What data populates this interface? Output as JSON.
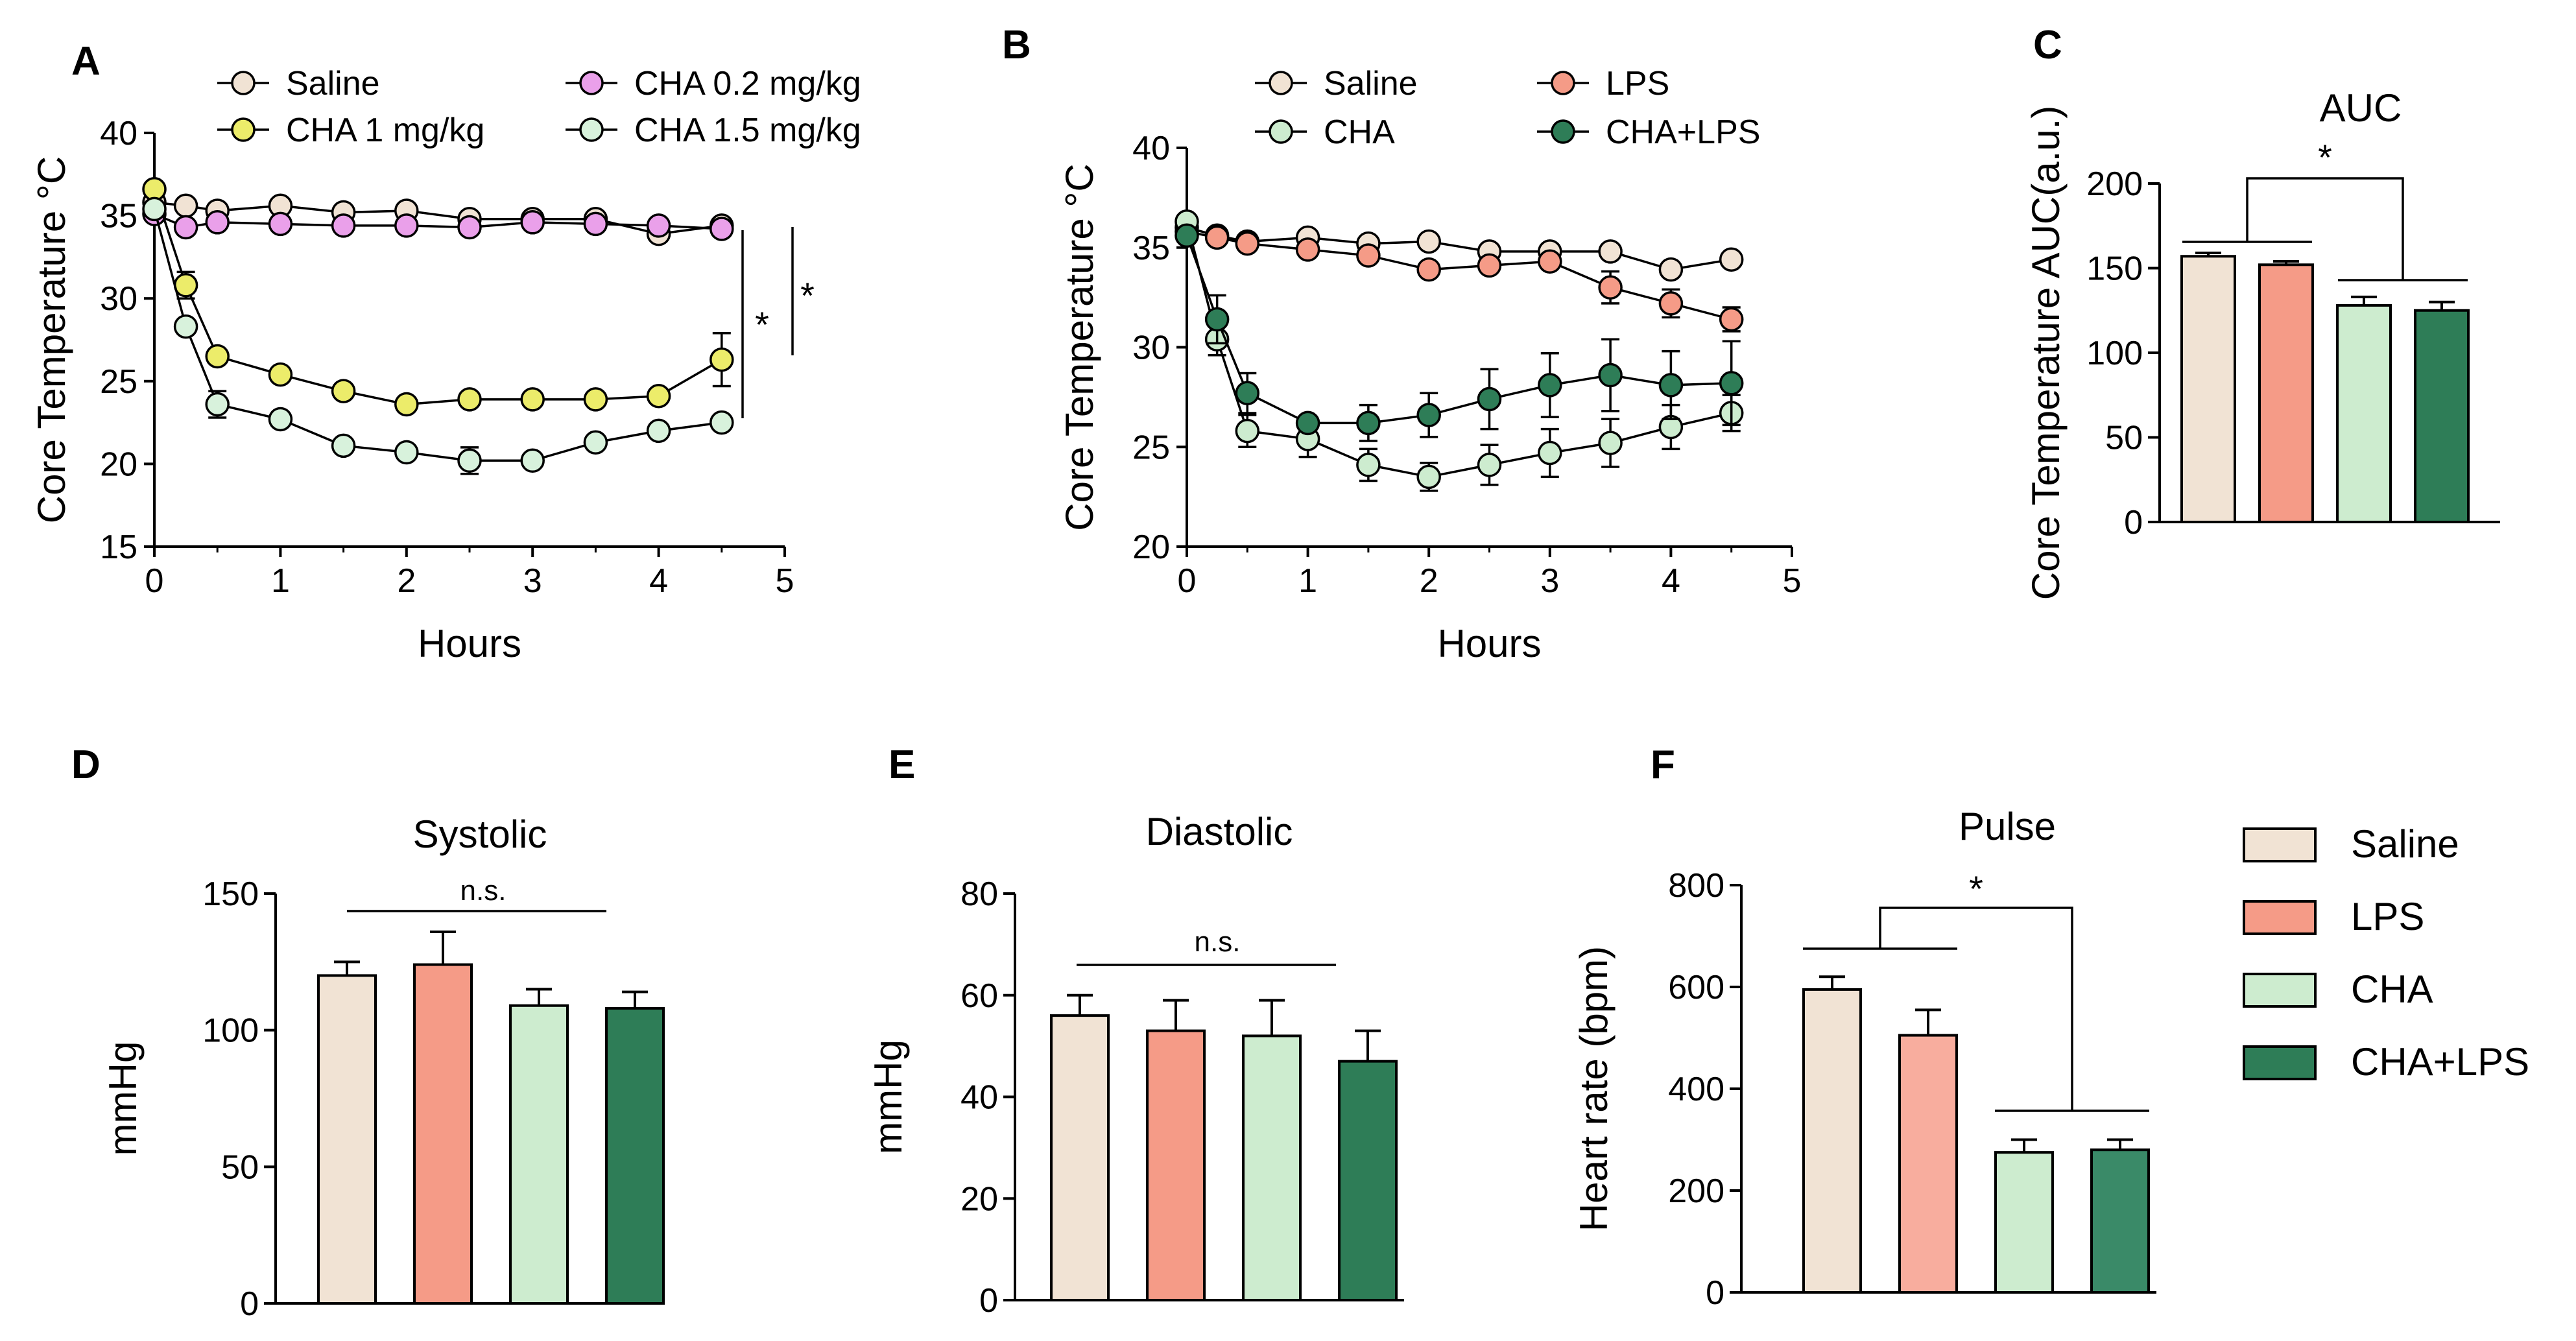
{
  "colors": {
    "Saline": "#f1e3d4",
    "LPS": "#f59b87",
    "CHA": "#cdeccf",
    "CHA+LPS": "#2e7d57",
    "CHA 0.2 mg/kg": "#eaa0ea",
    "CHA 1 mg/kg": "#ecec6a",
    "CHA 1.5 mg/kg": "#d8f2dc",
    "pulse_CHA+LPS": "#3a8a68",
    "pulse_LPS": "#f8ad9e"
  },
  "chart_data": [
    {
      "id": "A",
      "panel_label": "A",
      "type": "line",
      "title": "",
      "xlabel": "Hours",
      "ylabel": "Core Temperature °C",
      "xlim": [
        0,
        5
      ],
      "ylim": [
        15,
        40
      ],
      "xticks": [
        0,
        1,
        2,
        3,
        4,
        5
      ],
      "yticks": [
        15,
        20,
        25,
        30,
        35,
        40
      ],
      "legend": [
        "Saline",
        "CHA 1 mg/kg",
        "CHA 0.2 mg/kg",
        "CHA 1.5 mg/kg"
      ],
      "series": [
        {
          "name": "Saline",
          "x": [
            0,
            0.25,
            0.5,
            1,
            1.5,
            2,
            2.5,
            3,
            3.5,
            4,
            4.5
          ],
          "y": [
            35.8,
            35.6,
            35.3,
            35.6,
            35.2,
            35.3,
            34.8,
            34.8,
            34.8,
            33.9,
            34.4
          ],
          "err": [
            0.3,
            0.3,
            0.3,
            0.3,
            0.3,
            0.3,
            0.3,
            0.3,
            0.3,
            0.4,
            0.3
          ]
        },
        {
          "name": "CHA 0.2 mg/kg",
          "x": [
            0,
            0.25,
            0.5,
            1,
            1.5,
            2,
            2.5,
            3,
            3.5,
            4,
            4.5
          ],
          "y": [
            35.1,
            34.3,
            34.6,
            34.5,
            34.4,
            34.4,
            34.3,
            34.6,
            34.5,
            34.4,
            34.2
          ],
          "err": [
            0.3,
            0.3,
            0.3,
            0.3,
            0.3,
            0.3,
            0.3,
            0.3,
            0.3,
            0.3,
            0.3
          ]
        },
        {
          "name": "CHA 1 mg/kg",
          "x": [
            0,
            0.25,
            0.5,
            1,
            1.5,
            2,
            2.5,
            3,
            3.5,
            4,
            4.5
          ],
          "y": [
            36.6,
            30.8,
            26.5,
            25.4,
            24.4,
            23.6,
            23.9,
            23.9,
            23.9,
            24.1,
            26.3
          ],
          "err": [
            0.3,
            0.8,
            0.5,
            0.4,
            0.4,
            0.4,
            0.4,
            0.4,
            0.5,
            0.7,
            1.6
          ]
        },
        {
          "name": "CHA 1.5 mg/kg",
          "x": [
            0,
            0.25,
            0.5,
            1,
            1.5,
            2,
            2.5,
            3,
            3.5,
            4,
            4.5
          ],
          "y": [
            35.4,
            28.3,
            23.6,
            22.7,
            21.1,
            20.7,
            20.2,
            20.2,
            21.3,
            22.0,
            22.5
          ],
          "err": [
            0.3,
            0.5,
            0.8,
            0.4,
            0.3,
            0.3,
            0.8,
            0.7,
            0.7,
            0.4,
            0.4
          ]
        }
      ],
      "annotations": [
        "*",
        "*"
      ]
    },
    {
      "id": "B",
      "panel_label": "B",
      "type": "line",
      "title": "",
      "xlabel": "Hours",
      "ylabel": "Core Temperature °C",
      "xlim": [
        0,
        5
      ],
      "ylim": [
        20,
        40
      ],
      "xticks": [
        0,
        1,
        2,
        3,
        4,
        5
      ],
      "yticks": [
        20,
        25,
        30,
        35,
        40
      ],
      "legend": [
        "Saline",
        "CHA",
        "LPS",
        "CHA+LPS"
      ],
      "series": [
        {
          "name": "Saline",
          "x": [
            0,
            0.25,
            0.5,
            1,
            1.5,
            2,
            2.5,
            3,
            3.5,
            4,
            4.5
          ],
          "y": [
            36.0,
            35.6,
            35.3,
            35.5,
            35.2,
            35.3,
            34.8,
            34.8,
            34.8,
            33.9,
            34.4
          ],
          "err": [
            0.3,
            0.3,
            0.3,
            0.3,
            0.3,
            0.3,
            0.3,
            0.3,
            0.3,
            0.5,
            0.5
          ]
        },
        {
          "name": "LPS",
          "x": [
            0,
            0.25,
            0.5,
            1,
            1.5,
            2,
            2.5,
            3,
            3.5,
            4,
            4.5
          ],
          "y": [
            35.8,
            35.5,
            35.2,
            34.9,
            34.6,
            33.9,
            34.1,
            34.3,
            33.0,
            32.2,
            31.4
          ],
          "err": [
            0.3,
            0.3,
            0.3,
            0.3,
            0.3,
            0.4,
            0.4,
            0.4,
            0.8,
            0.7,
            0.6
          ]
        },
        {
          "name": "CHA",
          "x": [
            0,
            0.25,
            0.5,
            1,
            1.5,
            2,
            2.5,
            3,
            3.5,
            4,
            4.5
          ],
          "y": [
            36.3,
            30.4,
            25.8,
            25.4,
            24.1,
            23.5,
            24.1,
            24.7,
            25.2,
            26.0,
            26.7
          ],
          "err": [
            0.3,
            0.8,
            0.8,
            0.9,
            0.8,
            0.7,
            1.0,
            1.2,
            1.2,
            1.1,
            0.9
          ]
        },
        {
          "name": "CHA+LPS",
          "x": [
            0,
            0.25,
            0.5,
            1,
            1.5,
            2,
            2.5,
            3,
            3.5,
            4,
            4.5
          ],
          "y": [
            35.6,
            31.4,
            27.7,
            26.2,
            26.2,
            26.6,
            27.4,
            28.1,
            28.6,
            28.1,
            28.2
          ],
          "err": [
            0.3,
            1.2,
            1.0,
            0.5,
            0.9,
            1.1,
            1.5,
            1.6,
            1.8,
            1.7,
            2.1
          ]
        }
      ]
    },
    {
      "id": "C",
      "panel_label": "C",
      "type": "bar",
      "title": "AUC",
      "xlabel": "",
      "ylabel": "Core Temperature AUC(a.u.)",
      "ylim": [
        0,
        200
      ],
      "yticks": [
        0,
        50,
        100,
        150,
        200
      ],
      "categories": [
        "Saline",
        "LPS",
        "CHA",
        "CHA+LPS"
      ],
      "values": [
        157,
        152,
        128,
        125
      ],
      "errors": [
        2,
        2,
        5,
        5
      ],
      "annotation": "*"
    },
    {
      "id": "D",
      "panel_label": "D",
      "type": "bar",
      "title": "Systolic",
      "xlabel": "",
      "ylabel": "mmHg",
      "ylim": [
        0,
        150
      ],
      "yticks": [
        0,
        50,
        100,
        150
      ],
      "categories": [
        "Saline",
        "LPS",
        "CHA",
        "CHA+LPS"
      ],
      "values": [
        120,
        124,
        109,
        108
      ],
      "errors": [
        5,
        12,
        6,
        6
      ],
      "annotation": "n.s."
    },
    {
      "id": "E",
      "panel_label": "E",
      "type": "bar",
      "title": "Diastolic",
      "xlabel": "",
      "ylabel": "mmHg",
      "ylim": [
        0,
        80
      ],
      "yticks": [
        0,
        20,
        40,
        60,
        80
      ],
      "categories": [
        "Saline",
        "LPS",
        "CHA",
        "CHA+LPS"
      ],
      "values": [
        56,
        53,
        52,
        47
      ],
      "errors": [
        4,
        6,
        7,
        6
      ],
      "annotation": "n.s."
    },
    {
      "id": "F",
      "panel_label": "F",
      "type": "bar",
      "title": "Pulse",
      "xlabel": "",
      "ylabel": "Heart rate (bpm)",
      "ylim": [
        0,
        800
      ],
      "yticks": [
        0,
        200,
        400,
        600,
        800
      ],
      "categories": [
        "Saline",
        "LPS",
        "CHA",
        "CHA+LPS"
      ],
      "values": [
        595,
        505,
        275,
        280
      ],
      "errors": [
        25,
        50,
        25,
        20
      ],
      "annotation": "*"
    }
  ],
  "shared_legend": {
    "items": [
      "Saline",
      "LPS",
      "CHA",
      "CHA+LPS"
    ]
  }
}
